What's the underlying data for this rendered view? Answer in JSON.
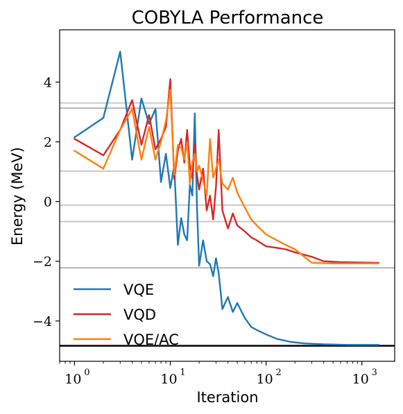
{
  "chart_data": {
    "type": "line",
    "title": "COBYLA Performance",
    "xlabel": "Iteration",
    "ylabel": "Energy (MeV)",
    "xscale": "log",
    "xlim": [
      0.7,
      2200
    ],
    "ylim": [
      -5.35,
      5.75
    ],
    "xticks": [
      {
        "value": 1,
        "base": "10",
        "exp": "0"
      },
      {
        "value": 10,
        "base": "10",
        "exp": "1"
      },
      {
        "value": 100,
        "base": "10",
        "exp": "2"
      },
      {
        "value": 1000,
        "base": "10",
        "exp": "3"
      }
    ],
    "yticks": [
      {
        "value": 4,
        "label": "4"
      },
      {
        "value": 2,
        "label": "2"
      },
      {
        "value": 0,
        "label": "0"
      },
      {
        "value": -2,
        "label": "−2"
      },
      {
        "value": -4,
        "label": "−4"
      }
    ],
    "grid": false,
    "legend_position": "lower-left",
    "reference_lines": [
      {
        "y": 3.3,
        "color": "#c8c8c8"
      },
      {
        "y": 3.13,
        "color": "#b4b4b4"
      },
      {
        "y": 1.02,
        "color": "#c8c8c8"
      },
      {
        "y": -0.12,
        "color": "#c8c8c8"
      },
      {
        "y": -0.67,
        "color": "#c8c8c8"
      },
      {
        "y": -2.22,
        "color": "#b4b4b4"
      },
      {
        "y": -4.83,
        "color": "#000000"
      }
    ],
    "series": [
      {
        "name": "VQE",
        "color": "#1f77b4",
        "points": [
          [
            1,
            2.15
          ],
          [
            2,
            2.8
          ],
          [
            3,
            5.02
          ],
          [
            4,
            1.4
          ],
          [
            5,
            3.45
          ],
          [
            6,
            2.6
          ],
          [
            7,
            3.1
          ],
          [
            8,
            0.65
          ],
          [
            9,
            1.6
          ],
          [
            10,
            0.45
          ],
          [
            11,
            1.2
          ],
          [
            12,
            -1.45
          ],
          [
            13,
            -0.55
          ],
          [
            14,
            -1.1
          ],
          [
            15,
            -1.3
          ],
          [
            16,
            0.55
          ],
          [
            17,
            0.2
          ],
          [
            18,
            2.95
          ],
          [
            19,
            -0.2
          ],
          [
            20,
            -2.15
          ],
          [
            22,
            -1.3
          ],
          [
            24,
            -2.0
          ],
          [
            26,
            -2.1
          ],
          [
            28,
            -2.5
          ],
          [
            30,
            -1.9
          ],
          [
            32,
            -2.4
          ],
          [
            35,
            -3.6
          ],
          [
            40,
            -3.2
          ],
          [
            45,
            -3.7
          ],
          [
            50,
            -3.4
          ],
          [
            60,
            -3.9
          ],
          [
            70,
            -4.2
          ],
          [
            80,
            -4.3
          ],
          [
            100,
            -4.45
          ],
          [
            130,
            -4.6
          ],
          [
            180,
            -4.7
          ],
          [
            250,
            -4.75
          ],
          [
            400,
            -4.78
          ],
          [
            700,
            -4.8
          ],
          [
            1500,
            -4.8
          ]
        ]
      },
      {
        "name": "VQD",
        "color": "#d62728",
        "points": [
          [
            1,
            2.1
          ],
          [
            2,
            1.55
          ],
          [
            3,
            2.4
          ],
          [
            4,
            3.4
          ],
          [
            5,
            1.9
          ],
          [
            6,
            2.9
          ],
          [
            7,
            1.75
          ],
          [
            8,
            2.1
          ],
          [
            9,
            2.5
          ],
          [
            10,
            4.1
          ],
          [
            11,
            0.75
          ],
          [
            12,
            1.7
          ],
          [
            13,
            2.1
          ],
          [
            14,
            1.3
          ],
          [
            15,
            2.4
          ],
          [
            16,
            1.2
          ],
          [
            17,
            0.8
          ],
          [
            18,
            1.9
          ],
          [
            19,
            0.9
          ],
          [
            20,
            0.4
          ],
          [
            22,
            1.1
          ],
          [
            24,
            -0.3
          ],
          [
            26,
            0.2
          ],
          [
            28,
            -0.6
          ],
          [
            30,
            0.5
          ],
          [
            32,
            2.4
          ],
          [
            35,
            -0.3
          ],
          [
            40,
            -0.9
          ],
          [
            45,
            -0.4
          ],
          [
            50,
            -0.8
          ],
          [
            60,
            -1.0
          ],
          [
            70,
            -1.2
          ],
          [
            80,
            -1.3
          ],
          [
            100,
            -1.5
          ],
          [
            130,
            -1.55
          ],
          [
            160,
            -1.6
          ],
          [
            200,
            -1.7
          ],
          [
            300,
            -1.85
          ],
          [
            400,
            -2.0
          ],
          [
            600,
            -2.03
          ],
          [
            1500,
            -2.05
          ]
        ]
      },
      {
        "name": "VQE/AC",
        "color": "#ff7f0e",
        "points": [
          [
            1,
            1.7
          ],
          [
            2,
            1.1
          ],
          [
            3,
            2.4
          ],
          [
            4,
            3.1
          ],
          [
            5,
            1.4
          ],
          [
            6,
            2.5
          ],
          [
            7,
            1.4
          ],
          [
            8,
            2.0
          ],
          [
            9,
            2.7
          ],
          [
            10,
            3.75
          ],
          [
            11,
            0.9
          ],
          [
            12,
            1.9
          ],
          [
            13,
            1.8
          ],
          [
            14,
            1.4
          ],
          [
            15,
            2.0
          ],
          [
            16,
            0.6
          ],
          [
            17,
            1.3
          ],
          [
            18,
            1.6
          ],
          [
            19,
            1.0
          ],
          [
            20,
            1.2
          ],
          [
            22,
            0.7
          ],
          [
            24,
            0.2
          ],
          [
            26,
            2.1
          ],
          [
            28,
            0.8
          ],
          [
            30,
            1.1
          ],
          [
            32,
            1.4
          ],
          [
            35,
            0.6
          ],
          [
            40,
            0.4
          ],
          [
            45,
            0.8
          ],
          [
            50,
            0.3
          ],
          [
            60,
            -0.2
          ],
          [
            70,
            -0.6
          ],
          [
            80,
            -0.8
          ],
          [
            100,
            -1.1
          ],
          [
            130,
            -1.3
          ],
          [
            160,
            -1.45
          ],
          [
            200,
            -1.6
          ],
          [
            300,
            -2.05
          ],
          [
            500,
            -2.07
          ],
          [
            800,
            -2.07
          ],
          [
            1500,
            -2.07
          ]
        ]
      }
    ]
  }
}
